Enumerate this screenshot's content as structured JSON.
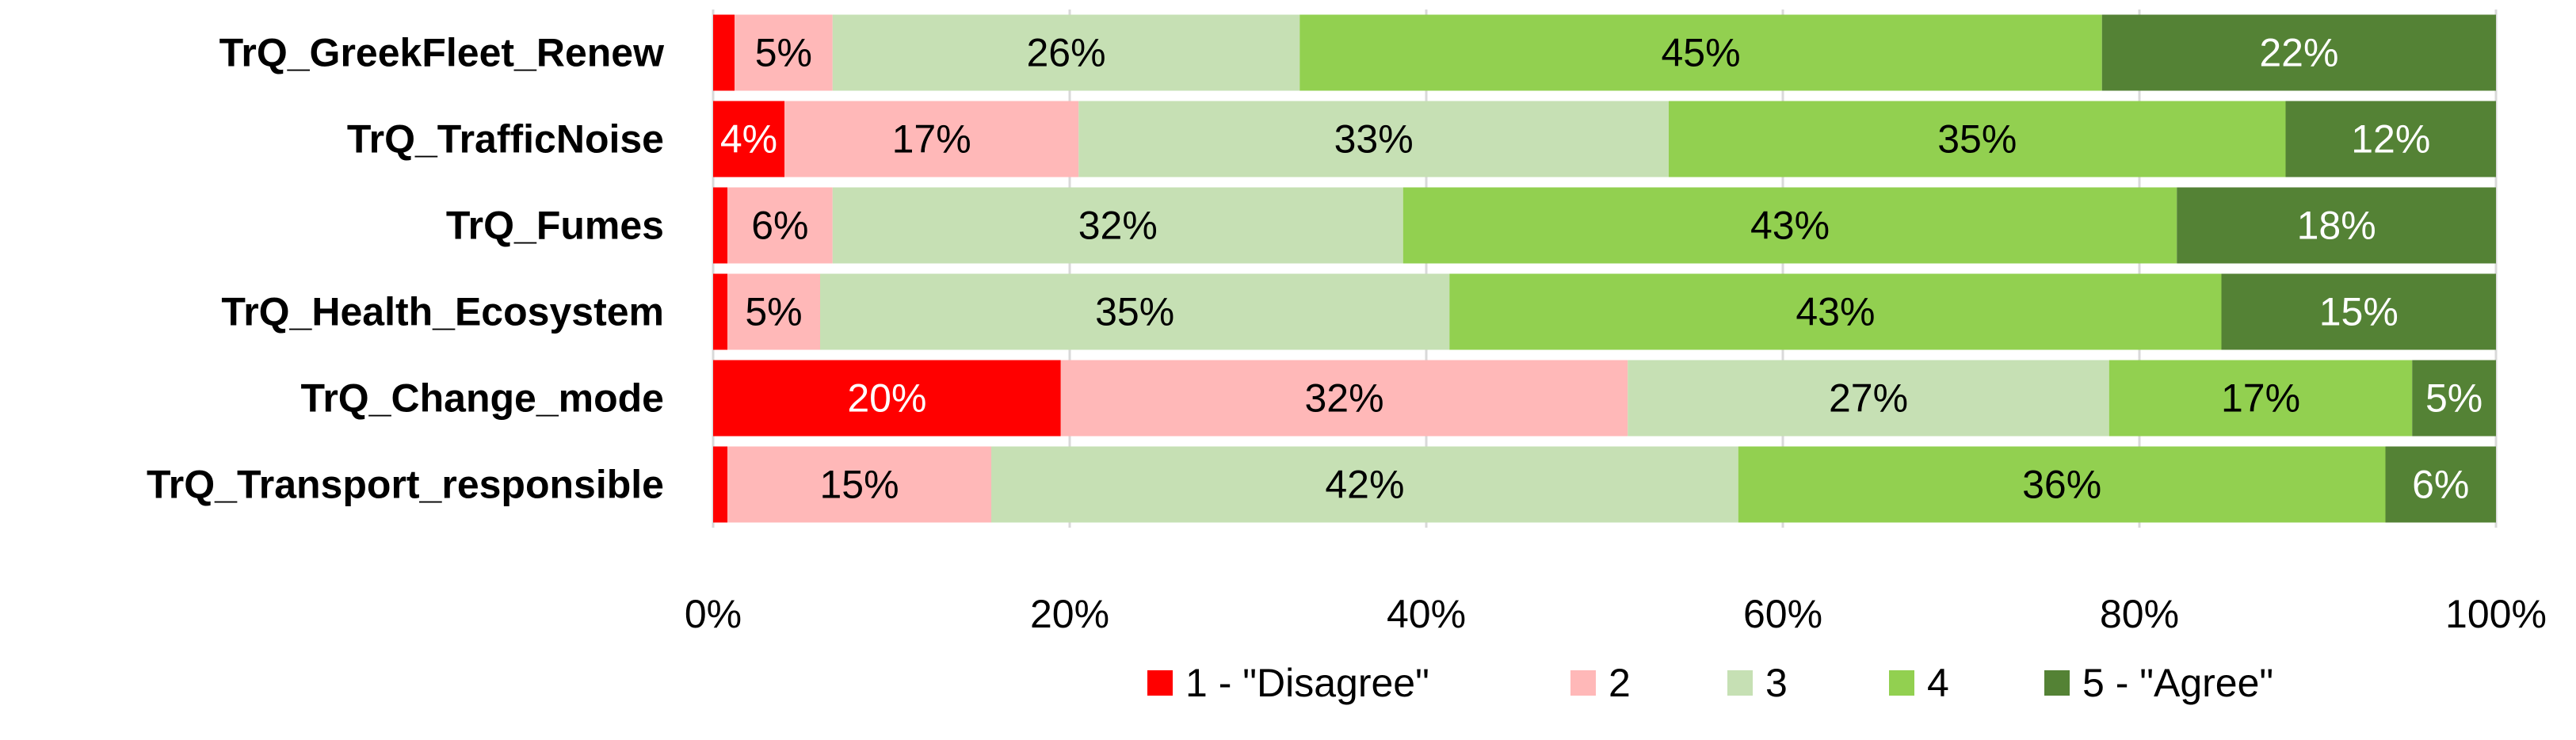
{
  "chart_data": {
    "type": "bar",
    "orientation": "horizontal",
    "stacked": "percent",
    "categories": [
      "TrQ_GreekFleet_Renew",
      "TrQ_TrafficNoise",
      "TrQ_Fumes",
      "TrQ_Health_Ecosystem",
      "TrQ_Change_mode",
      "TrQ_Transport_responsible"
    ],
    "series": [
      {
        "name": "1 - \"Disagree\"",
        "color": "#ff0000",
        "label_color": "#ffffff",
        "values": [
          1.2,
          4,
          0.8,
          0.8,
          19.5,
          0.8
        ],
        "labels": [
          "",
          "4%",
          "",
          "",
          "20%",
          ""
        ]
      },
      {
        "name": "2",
        "color": "#ffb8b8",
        "label_color": "#000000",
        "values": [
          5.5,
          16.5,
          5.9,
          5.2,
          31.8,
          14.8
        ],
        "labels": [
          "5%",
          "17%",
          "6%",
          "5%",
          "32%",
          "15%"
        ]
      },
      {
        "name": "3",
        "color": "#c6e0b4",
        "label_color": "#000000",
        "values": [
          26.2,
          33.1,
          32.0,
          35.3,
          27.0,
          41.9
        ],
        "labels": [
          "26%",
          "33%",
          "32%",
          "35%",
          "27%",
          "42%"
        ]
      },
      {
        "name": "4",
        "color": "#92d050",
        "label_color": "#000000",
        "values": [
          45.0,
          34.6,
          43.4,
          43.3,
          17.0,
          36.3
        ],
        "labels": [
          "45%",
          "35%",
          "43%",
          "43%",
          "17%",
          "36%"
        ]
      },
      {
        "name": "5 - \"Agree\"",
        "color": "#548235",
        "label_color": "#ffffff",
        "values": [
          22.1,
          11.8,
          17.9,
          15.4,
          4.7,
          6.2
        ],
        "labels": [
          "22%",
          "12%",
          "18%",
          "15%",
          "5%",
          "6%"
        ]
      }
    ],
    "xlim": [
      0,
      100
    ],
    "xticks": [
      "0%",
      "20%",
      "40%",
      "60%",
      "80%",
      "100%"
    ],
    "grid": true,
    "gridline_color": "#d9d9d9",
    "legend_position": "bottom"
  }
}
